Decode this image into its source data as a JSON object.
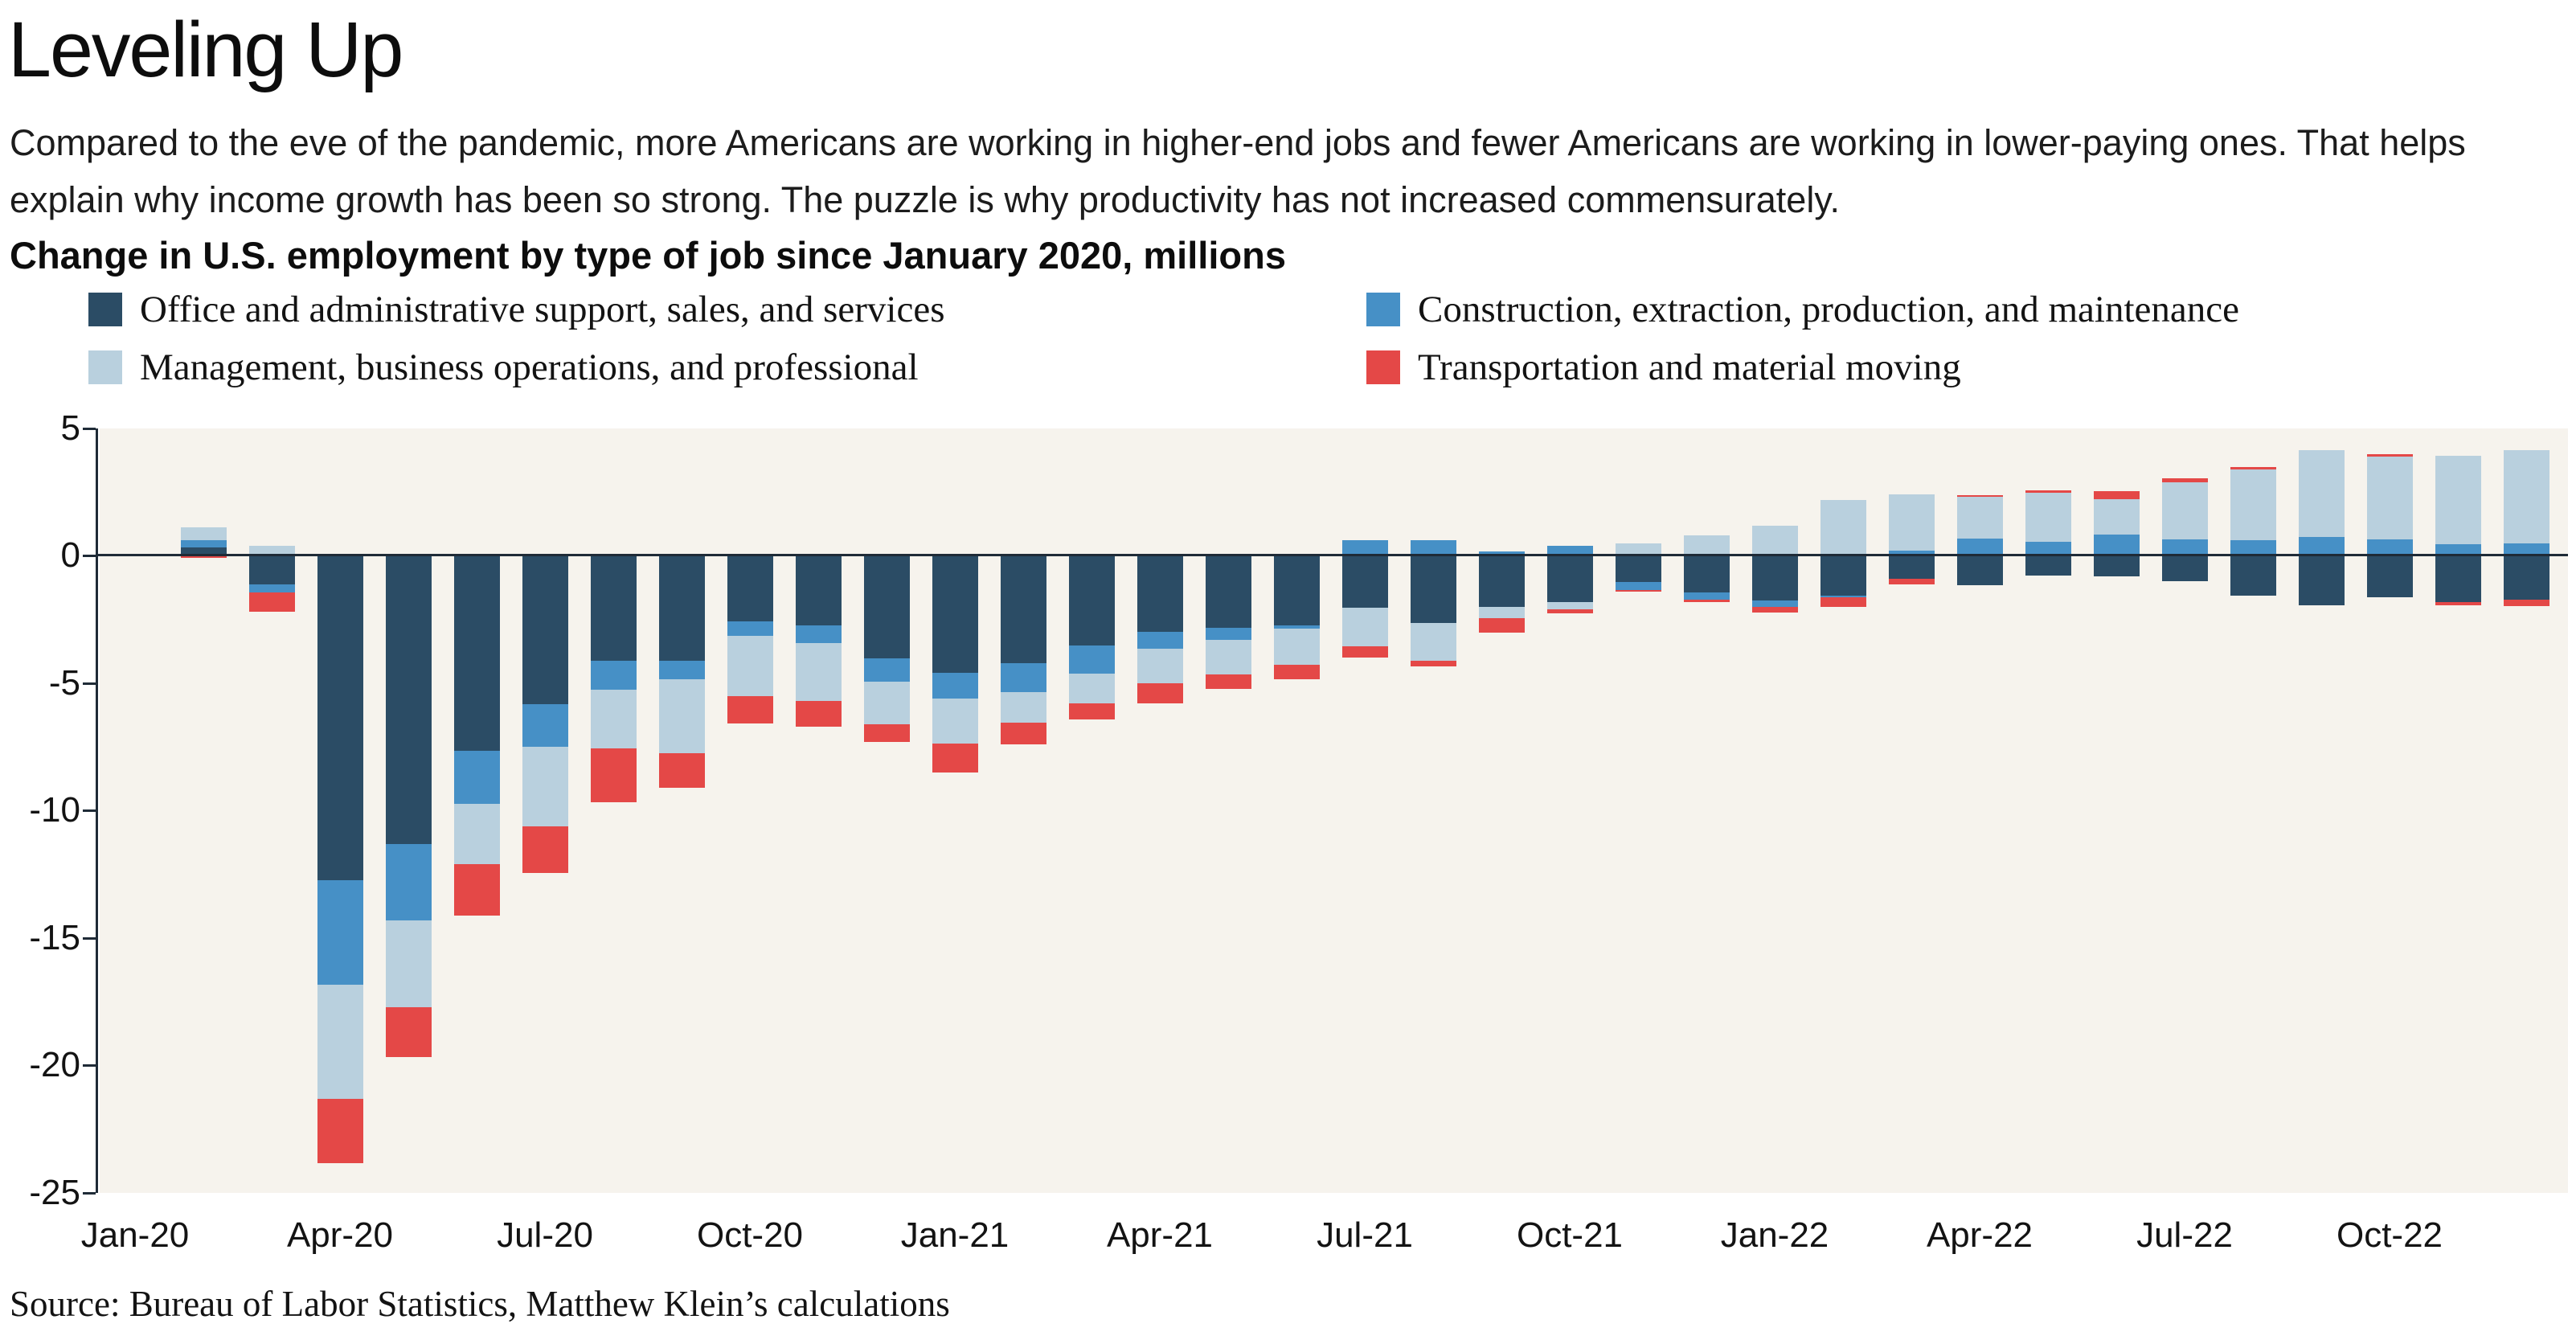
{
  "title": "Leveling Up",
  "subtitle": "Compared to the eve of the pandemic, more Americans are working in higher-end jobs and fewer Americans are working in lower-paying ones. That helps explain why income growth has been so strong. The puzzle is why productivity has not increased commensurately.",
  "heading": "Change in U.S. employment by type of job since January 2020, millions",
  "source": "Source: Bureau of Labor Statistics, Matthew Klein’s calculations",
  "colors": {
    "office_navy": "#2b4c65",
    "construction_blue": "#4690c6",
    "management_lightblue": "#b9d0de",
    "transportation_red": "#e44847",
    "plot_background": "#f6f3ed",
    "axis": "#1f2b37",
    "text": "#111111"
  },
  "chart_data": {
    "type": "bar",
    "stacked": true,
    "title": "Change in U.S. employment by type of job since January 2020, millions",
    "xlabel": "",
    "ylabel": "",
    "ylim": [
      -25,
      5
    ],
    "yticks": [
      5,
      0,
      -5,
      -10,
      -15,
      -20,
      -25
    ],
    "x_tick_every": 3,
    "grid": false,
    "legend_position": "top",
    "x": [
      "Jan-20",
      "Feb-20",
      "Mar-20",
      "Apr-20",
      "May-20",
      "Jun-20",
      "Jul-20",
      "Aug-20",
      "Sep-20",
      "Oct-20",
      "Nov-20",
      "Dec-20",
      "Jan-21",
      "Feb-21",
      "Mar-21",
      "Apr-21",
      "May-21",
      "Jun-21",
      "Jul-21",
      "Aug-21",
      "Sep-21",
      "Oct-21",
      "Nov-21",
      "Dec-21",
      "Jan-22",
      "Feb-22",
      "Mar-22",
      "Apr-22",
      "May-22",
      "Jun-22",
      "Jul-22",
      "Aug-22",
      "Sep-22",
      "Oct-22",
      "Nov-22",
      "Dec-22"
    ],
    "series": [
      {
        "name": "Office and administrative support, sales, and services",
        "color": "#2b4c65",
        "values": [
          0,
          0.31,
          -1.15,
          -12.75,
          -11.33,
          -7.67,
          -5.85,
          -4.12,
          -4.14,
          -2.59,
          -2.75,
          -4.04,
          -4.59,
          -4.22,
          -3.54,
          -3.01,
          -2.83,
          -2.73,
          -2.05,
          -2.66,
          -2.02,
          -1.83,
          -1.04,
          -1.45,
          -1.78,
          -1.59,
          -0.92,
          -1.16,
          -0.79,
          -0.81,
          -1.0,
          -1.57,
          -1.95,
          -1.63,
          -1.84,
          -1.73
        ]
      },
      {
        "name": "Construction, extraction, production, and maintenance",
        "color": "#4690c6",
        "values": [
          0,
          0.29,
          -0.31,
          -4.11,
          -3.0,
          -2.09,
          -1.67,
          -1.15,
          -0.71,
          -0.58,
          -0.68,
          -0.92,
          -1.03,
          -1.13,
          -1.1,
          -0.65,
          -0.48,
          -0.15,
          0.6,
          0.6,
          0.17,
          0.38,
          -0.32,
          -0.3,
          -0.25,
          -0.05,
          0.19,
          0.67,
          0.54,
          0.81,
          0.64,
          0.6,
          0.73,
          0.62,
          0.43,
          0.46
        ]
      },
      {
        "name": "Management, business operations, and professional",
        "color": "#b9d0de",
        "values": [
          0,
          0.5,
          0.39,
          -4.47,
          -3.39,
          -2.36,
          -3.1,
          -2.3,
          -2.92,
          -2.34,
          -2.27,
          -1.68,
          -1.76,
          -1.22,
          -1.16,
          -1.37,
          -1.36,
          -1.42,
          -1.5,
          -1.48,
          -0.44,
          -0.29,
          0.47,
          0.79,
          1.17,
          2.18,
          2.21,
          1.66,
          1.91,
          1.41,
          2.24,
          2.78,
          3.4,
          3.26,
          3.48,
          3.66
        ]
      },
      {
        "name": "Transportation and material moving",
        "color": "#e44847",
        "values": [
          0,
          -0.09,
          -0.74,
          -2.53,
          -1.98,
          -2.0,
          -1.83,
          -2.11,
          -1.35,
          -1.08,
          -1.02,
          -0.67,
          -1.13,
          -0.83,
          -0.63,
          -0.79,
          -0.57,
          -0.57,
          -0.45,
          -0.21,
          -0.56,
          -0.15,
          -0.07,
          -0.07,
          -0.21,
          -0.37,
          -0.23,
          0.05,
          0.09,
          0.29,
          0.16,
          0.09,
          0.0,
          0.08,
          -0.11,
          -0.27
        ]
      }
    ]
  }
}
